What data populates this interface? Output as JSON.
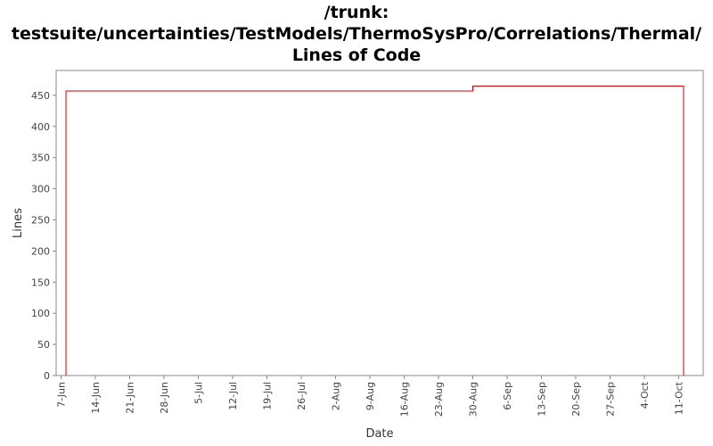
{
  "chart_data": {
    "type": "step",
    "title": "/trunk: testsuite/uncertainties/TestModels/ThermoSysPro/Correlations/Thermal/ Lines of Code",
    "x_label": "Date",
    "y_label": "Lines",
    "x": [
      "8-Jun",
      "8-Jun",
      "30-Aug",
      "12-Oct"
    ],
    "series": [
      {
        "name": "Lines",
        "color": "#cc0000",
        "values": [
          0,
          457,
          465,
          0
        ]
      }
    ],
    "xlim": [
      "6-Jun",
      "16-Oct"
    ],
    "xticks": [
      "7-Jun",
      "14-Jun",
      "21-Jun",
      "28-Jun",
      "5-Jul",
      "12-Jul",
      "19-Jul",
      "26-Jul",
      "2-Aug",
      "9-Aug",
      "16-Aug",
      "23-Aug",
      "30-Aug",
      "6-Sep",
      "13-Sep",
      "20-Sep",
      "27-Sep",
      "4-Oct",
      "11-Oct"
    ],
    "ylim": [
      0,
      490
    ],
    "yticks": [
      0,
      50,
      100,
      150,
      200,
      250,
      300,
      350,
      400,
      450
    ],
    "grid": false
  }
}
